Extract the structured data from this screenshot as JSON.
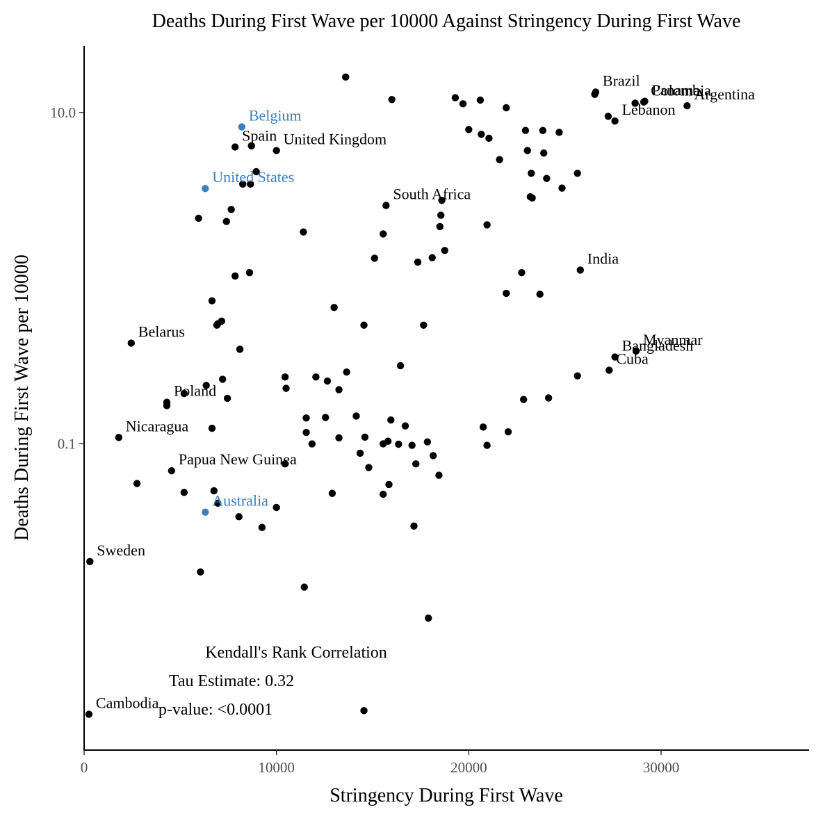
{
  "chart_data": {
    "type": "scatter",
    "title": "Deaths During First Wave per 10000 Against Stringency During First Wave",
    "xlabel": "Stringency During First Wave",
    "ylabel": "Deaths During First Wave per 10000",
    "x_ticks": [
      {
        "value": 0,
        "label": "0"
      },
      {
        "value": 10000,
        "label": "10000"
      },
      {
        "value": 20000,
        "label": "20000"
      },
      {
        "value": 30000,
        "label": "30000"
      }
    ],
    "y_ticks": [
      {
        "value": 10,
        "label": "10.0"
      },
      {
        "value": 0.1,
        "label": "0.1"
      }
    ],
    "xlim": [
      0,
      37700
    ],
    "ylim": [
      0.00141,
      25.3
    ],
    "y_scale": "log10",
    "grid": false,
    "legend": "none",
    "colors": {
      "highlight": "#3a7fc2",
      "default": "#000000"
    },
    "annotations": [
      "Kendall's Rank Correlation",
      "Tau Estimate: 0.32",
      "p-value: <0.0001"
    ],
    "labeled_points": [
      {
        "label": "Brazil",
        "x": 26600,
        "y": 13.3,
        "highlight": false
      },
      {
        "label": "Panama",
        "x": 29150,
        "y": 11.7,
        "highlight": false
      },
      {
        "label": "Colombia",
        "x": 29100,
        "y": 11.6,
        "highlight": false
      },
      {
        "label": "Argentina",
        "x": 31350,
        "y": 11.0,
        "highlight": false
      },
      {
        "label": "Lebanon",
        "x": 27600,
        "y": 8.9,
        "highlight": false
      },
      {
        "label": "Belgium",
        "x": 8200,
        "y": 8.2,
        "highlight": true
      },
      {
        "label": "Spain",
        "x": 7850,
        "y": 6.2,
        "highlight": false
      },
      {
        "label": "United Kingdom",
        "x": 10000,
        "y": 5.9,
        "highlight": false
      },
      {
        "label": "United States",
        "x": 6300,
        "y": 3.48,
        "highlight": true
      },
      {
        "label": "South Africa",
        "x": 15700,
        "y": 2.75,
        "highlight": false
      },
      {
        "label": "India",
        "x": 25800,
        "y": 1.12,
        "highlight": false
      },
      {
        "label": "Belarus",
        "x": 2450,
        "y": 0.405,
        "highlight": false
      },
      {
        "label": "Myanmar",
        "x": 28700,
        "y": 0.363,
        "highlight": false
      },
      {
        "label": "Bangladesh",
        "x": 27600,
        "y": 0.334,
        "highlight": false
      },
      {
        "label": "Cuba",
        "x": 27300,
        "y": 0.278,
        "highlight": false
      },
      {
        "label": "Poland",
        "x": 4300,
        "y": 0.178,
        "highlight": false
      },
      {
        "label": "Nicaragua",
        "x": 1800,
        "y": 0.109,
        "highlight": false
      },
      {
        "label": "Papua New Guinea",
        "x": 4550,
        "y": 0.0686,
        "highlight": false
      },
      {
        "label": "Australia",
        "x": 6300,
        "y": 0.0386,
        "highlight": true
      },
      {
        "label": "Sweden",
        "x": 300,
        "y": 0.0194,
        "highlight": false
      },
      {
        "label": "Cambodia",
        "x": 250,
        "y": 0.00232,
        "highlight": false
      }
    ],
    "points": [
      [
        13600,
        16.4
      ],
      [
        16000,
        12.0
      ],
      [
        19300,
        12.3
      ],
      [
        19700,
        11.3
      ],
      [
        20600,
        11.9
      ],
      [
        21950,
        10.7
      ],
      [
        26550,
        12.9
      ],
      [
        28650,
        11.4
      ],
      [
        27250,
        9.5
      ],
      [
        20000,
        7.9
      ],
      [
        20650,
        7.4
      ],
      [
        21050,
        7.0
      ],
      [
        22950,
        7.8
      ],
      [
        23850,
        7.8
      ],
      [
        24700,
        7.6
      ],
      [
        23050,
        5.9
      ],
      [
        23900,
        5.7
      ],
      [
        21600,
        5.2
      ],
      [
        23250,
        4.3
      ],
      [
        24050,
        4.0
      ],
      [
        25650,
        4.3
      ],
      [
        24850,
        3.5
      ],
      [
        23200,
        3.1
      ],
      [
        23300,
        3.05
      ],
      [
        8700,
        6.3
      ],
      [
        8950,
        4.4
      ],
      [
        8250,
        3.7
      ],
      [
        8650,
        3.7
      ],
      [
        7650,
        2.6
      ],
      [
        5950,
        2.3
      ],
      [
        7400,
        2.2
      ],
      [
        11400,
        1.9
      ],
      [
        18600,
        2.95
      ],
      [
        18550,
        2.4
      ],
      [
        18500,
        2.05
      ],
      [
        20950,
        2.1
      ],
      [
        18750,
        1.47
      ],
      [
        18100,
        1.33
      ],
      [
        17350,
        1.25
      ],
      [
        15550,
        1.85
      ],
      [
        15100,
        1.32
      ],
      [
        22750,
        1.08
      ],
      [
        21950,
        0.81
      ],
      [
        23700,
        0.8
      ],
      [
        7850,
        1.03
      ],
      [
        8600,
        1.08
      ],
      [
        6650,
        0.73
      ],
      [
        13000,
        0.665
      ],
      [
        6950,
        0.53
      ],
      [
        7150,
        0.55
      ],
      [
        6900,
        0.52
      ],
      [
        14550,
        0.52
      ],
      [
        17650,
        0.52
      ],
      [
        8100,
        0.372
      ],
      [
        16450,
        0.296
      ],
      [
        13650,
        0.271
      ],
      [
        10450,
        0.253
      ],
      [
        12050,
        0.253
      ],
      [
        12650,
        0.239
      ],
      [
        7200,
        0.245
      ],
      [
        13250,
        0.212
      ],
      [
        6350,
        0.225
      ],
      [
        10500,
        0.216
      ],
      [
        5200,
        0.201
      ],
      [
        7450,
        0.188
      ],
      [
        25650,
        0.257
      ],
      [
        22850,
        0.185
      ],
      [
        24150,
        0.189
      ],
      [
        11550,
        0.143
      ],
      [
        12550,
        0.144
      ],
      [
        14150,
        0.147
      ],
      [
        15950,
        0.139
      ],
      [
        16700,
        0.128
      ],
      [
        20750,
        0.126
      ],
      [
        22050,
        0.118
      ],
      [
        4300,
        0.17
      ],
      [
        6650,
        0.124
      ],
      [
        11550,
        0.117
      ],
      [
        13250,
        0.1085
      ],
      [
        14600,
        0.1095
      ],
      [
        15800,
        0.1035
      ],
      [
        17850,
        0.1025
      ],
      [
        11850,
        0.0997
      ],
      [
        15550,
        0.0998
      ],
      [
        16350,
        0.0993
      ],
      [
        17050,
        0.0978
      ],
      [
        20950,
        0.0978
      ],
      [
        14350,
        0.0876
      ],
      [
        18150,
        0.0847
      ],
      [
        10450,
        0.0755
      ],
      [
        14800,
        0.0718
      ],
      [
        17250,
        0.0755
      ],
      [
        18450,
        0.0645
      ],
      [
        2750,
        0.0575
      ],
      [
        5200,
        0.0508
      ],
      [
        6750,
        0.052
      ],
      [
        12900,
        0.0501
      ],
      [
        15550,
        0.0495
      ],
      [
        15850,
        0.0567
      ],
      [
        6950,
        0.0437
      ],
      [
        10000,
        0.0412
      ],
      [
        8050,
        0.0362
      ],
      [
        9250,
        0.0312
      ],
      [
        17150,
        0.0318
      ],
      [
        6050,
        0.0168
      ],
      [
        11450,
        0.0136
      ],
      [
        17900,
        0.00884
      ],
      [
        14550,
        0.00244
      ]
    ]
  }
}
